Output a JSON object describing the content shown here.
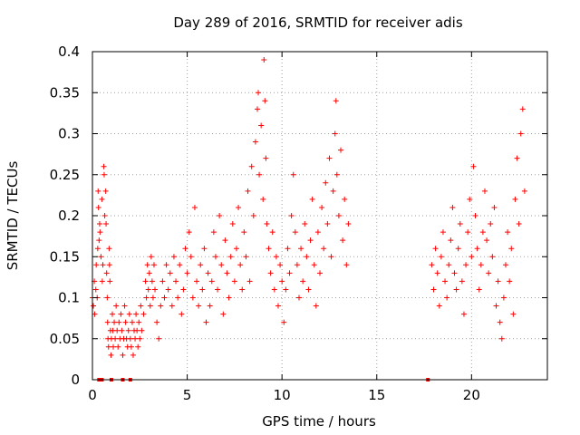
{
  "chart_data": {
    "type": "scatter",
    "title": "Day 289 of 2016, SRMTID for receiver adis",
    "xlabel": "GPS time / hours",
    "ylabel": "SRMTID / TECUs",
    "xlim": [
      0,
      24
    ],
    "ylim": [
      0,
      0.4
    ],
    "x_ticks": [
      0,
      5,
      10,
      15,
      20
    ],
    "y_ticks": [
      0,
      0.05,
      0.1,
      0.15,
      0.2,
      0.25,
      0.3,
      0.35,
      0.4
    ],
    "x_tick_labels": [
      "0",
      "5",
      "10",
      "15",
      "20"
    ],
    "y_tick_labels": [
      "0",
      "0.05",
      "0.1",
      "0.15",
      "0.2",
      "0.25",
      "0.3",
      "0.35",
      "0.4"
    ],
    "grid": true,
    "marker": "plus",
    "color": "#ff0000",
    "series": [
      {
        "name": "SRMTID",
        "points": [
          [
            0.0,
            0.1
          ],
          [
            0.05,
            0.09
          ],
          [
            0.1,
            0.12
          ],
          [
            0.12,
            0.08
          ],
          [
            0.18,
            0.11
          ],
          [
            0.2,
            0.14
          ],
          [
            0.25,
            0.1
          ],
          [
            0.28,
            0.16
          ],
          [
            0.3,
            0.23
          ],
          [
            0.32,
            0.21
          ],
          [
            0.35,
            0.17
          ],
          [
            0.38,
            0.19
          ],
          [
            0.4,
            0.18
          ],
          [
            0.45,
            0.15
          ],
          [
            0.5,
            0.22
          ],
          [
            0.52,
            0.12
          ],
          [
            0.55,
            0.14
          ],
          [
            0.6,
            0.26
          ],
          [
            0.62,
            0.25
          ],
          [
            0.65,
            0.2
          ],
          [
            0.7,
            0.23
          ],
          [
            0.72,
            0.19
          ],
          [
            0.75,
            0.13
          ],
          [
            0.78,
            0.1
          ],
          [
            0.8,
            0.07
          ],
          [
            0.82,
            0.05
          ],
          [
            0.85,
            0.04
          ],
          [
            0.88,
            0.16
          ],
          [
            0.9,
            0.14
          ],
          [
            0.92,
            0.12
          ],
          [
            0.95,
            0.06
          ],
          [
            0.98,
            0.03
          ],
          [
            1.0,
            0.05
          ],
          [
            1.05,
            0.08
          ],
          [
            1.08,
            0.06
          ],
          [
            1.1,
            0.04
          ],
          [
            1.15,
            0.07
          ],
          [
            1.2,
            0.05
          ],
          [
            1.25,
            0.09
          ],
          [
            1.3,
            0.06
          ],
          [
            1.35,
            0.04
          ],
          [
            1.4,
            0.07
          ],
          [
            1.45,
            0.05
          ],
          [
            1.5,
            0.08
          ],
          [
            1.55,
            0.06
          ],
          [
            1.6,
            0.03
          ],
          [
            1.65,
            0.05
          ],
          [
            1.7,
            0.09
          ],
          [
            1.75,
            0.07
          ],
          [
            1.8,
            0.05
          ],
          [
            1.85,
            0.04
          ],
          [
            1.9,
            0.06
          ],
          [
            1.95,
            0.08
          ],
          [
            2.0,
            0.05
          ],
          [
            2.05,
            0.04
          ],
          [
            2.1,
            0.07
          ],
          [
            2.15,
            0.03
          ],
          [
            2.2,
            0.06
          ],
          [
            2.25,
            0.05
          ],
          [
            2.3,
            0.08
          ],
          [
            2.35,
            0.06
          ],
          [
            2.4,
            0.04
          ],
          [
            2.45,
            0.07
          ],
          [
            2.5,
            0.05
          ],
          [
            2.55,
            0.09
          ],
          [
            2.6,
            0.06
          ],
          [
            2.7,
            0.08
          ],
          [
            2.8,
            0.12
          ],
          [
            2.85,
            0.1
          ],
          [
            2.9,
            0.14
          ],
          [
            2.95,
            0.11
          ],
          [
            3.0,
            0.13
          ],
          [
            3.05,
            0.09
          ],
          [
            3.1,
            0.15
          ],
          [
            3.15,
            0.12
          ],
          [
            3.2,
            0.1
          ],
          [
            3.25,
            0.14
          ],
          [
            3.3,
            0.11
          ],
          [
            3.4,
            0.07
          ],
          [
            3.5,
            0.05
          ],
          [
            3.6,
            0.09
          ],
          [
            3.7,
            0.12
          ],
          [
            3.8,
            0.1
          ],
          [
            3.9,
            0.14
          ],
          [
            4.0,
            0.11
          ],
          [
            4.1,
            0.13
          ],
          [
            4.2,
            0.09
          ],
          [
            4.3,
            0.15
          ],
          [
            4.4,
            0.12
          ],
          [
            4.5,
            0.1
          ],
          [
            4.6,
            0.14
          ],
          [
            4.7,
            0.08
          ],
          [
            4.8,
            0.11
          ],
          [
            4.9,
            0.16
          ],
          [
            5.0,
            0.13
          ],
          [
            5.1,
            0.18
          ],
          [
            5.2,
            0.15
          ],
          [
            5.3,
            0.1
          ],
          [
            5.4,
            0.21
          ],
          [
            5.5,
            0.12
          ],
          [
            5.6,
            0.09
          ],
          [
            5.7,
            0.14
          ],
          [
            5.8,
            0.11
          ],
          [
            5.9,
            0.16
          ],
          [
            6.0,
            0.07
          ],
          [
            6.1,
            0.13
          ],
          [
            6.2,
            0.09
          ],
          [
            6.3,
            0.12
          ],
          [
            6.4,
            0.18
          ],
          [
            6.5,
            0.15
          ],
          [
            6.6,
            0.11
          ],
          [
            6.7,
            0.2
          ],
          [
            6.8,
            0.14
          ],
          [
            6.9,
            0.08
          ],
          [
            7.0,
            0.17
          ],
          [
            7.1,
            0.13
          ],
          [
            7.2,
            0.1
          ],
          [
            7.3,
            0.15
          ],
          [
            7.4,
            0.19
          ],
          [
            7.5,
            0.12
          ],
          [
            7.6,
            0.16
          ],
          [
            7.7,
            0.21
          ],
          [
            7.8,
            0.14
          ],
          [
            7.9,
            0.11
          ],
          [
            8.0,
            0.18
          ],
          [
            8.1,
            0.15
          ],
          [
            8.2,
            0.23
          ],
          [
            8.3,
            0.12
          ],
          [
            8.4,
            0.26
          ],
          [
            8.5,
            0.2
          ],
          [
            8.6,
            0.29
          ],
          [
            8.7,
            0.33
          ],
          [
            8.75,
            0.35
          ],
          [
            8.8,
            0.25
          ],
          [
            8.9,
            0.31
          ],
          [
            9.0,
            0.22
          ],
          [
            9.05,
            0.39
          ],
          [
            9.1,
            0.34
          ],
          [
            9.15,
            0.27
          ],
          [
            9.2,
            0.19
          ],
          [
            9.3,
            0.16
          ],
          [
            9.4,
            0.13
          ],
          [
            9.5,
            0.18
          ],
          [
            9.6,
            0.11
          ],
          [
            9.7,
            0.15
          ],
          [
            9.8,
            0.09
          ],
          [
            9.9,
            0.14
          ],
          [
            10.0,
            0.12
          ],
          [
            10.1,
            0.07
          ],
          [
            10.2,
            0.11
          ],
          [
            10.3,
            0.16
          ],
          [
            10.4,
            0.13
          ],
          [
            10.5,
            0.2
          ],
          [
            10.6,
            0.25
          ],
          [
            10.7,
            0.18
          ],
          [
            10.8,
            0.14
          ],
          [
            10.9,
            0.1
          ],
          [
            11.0,
            0.16
          ],
          [
            11.1,
            0.12
          ],
          [
            11.2,
            0.19
          ],
          [
            11.3,
            0.15
          ],
          [
            11.4,
            0.11
          ],
          [
            11.5,
            0.17
          ],
          [
            11.6,
            0.22
          ],
          [
            11.7,
            0.14
          ],
          [
            11.8,
            0.09
          ],
          [
            11.9,
            0.18
          ],
          [
            12.0,
            0.13
          ],
          [
            12.1,
            0.21
          ],
          [
            12.2,
            0.16
          ],
          [
            12.3,
            0.24
          ],
          [
            12.4,
            0.19
          ],
          [
            12.5,
            0.27
          ],
          [
            12.6,
            0.15
          ],
          [
            12.7,
            0.23
          ],
          [
            12.8,
            0.3
          ],
          [
            12.85,
            0.34
          ],
          [
            12.9,
            0.25
          ],
          [
            13.0,
            0.2
          ],
          [
            13.1,
            0.28
          ],
          [
            13.2,
            0.17
          ],
          [
            13.3,
            0.22
          ],
          [
            13.4,
            0.14
          ],
          [
            13.5,
            0.19
          ],
          [
            17.7,
            0.0
          ],
          [
            0.35,
            0.0
          ],
          [
            0.5,
            0.0
          ],
          [
            1.0,
            0.0
          ],
          [
            1.6,
            0.0
          ],
          [
            2.0,
            0.0
          ],
          [
            17.9,
            0.14
          ],
          [
            18.0,
            0.11
          ],
          [
            18.1,
            0.16
          ],
          [
            18.2,
            0.13
          ],
          [
            18.3,
            0.09
          ],
          [
            18.4,
            0.15
          ],
          [
            18.5,
            0.18
          ],
          [
            18.6,
            0.12
          ],
          [
            18.7,
            0.1
          ],
          [
            18.8,
            0.14
          ],
          [
            18.9,
            0.17
          ],
          [
            19.0,
            0.21
          ],
          [
            19.1,
            0.13
          ],
          [
            19.2,
            0.11
          ],
          [
            19.3,
            0.16
          ],
          [
            19.4,
            0.19
          ],
          [
            19.5,
            0.12
          ],
          [
            19.6,
            0.08
          ],
          [
            19.7,
            0.14
          ],
          [
            19.8,
            0.18
          ],
          [
            19.9,
            0.22
          ],
          [
            20.0,
            0.15
          ],
          [
            20.1,
            0.26
          ],
          [
            20.2,
            0.2
          ],
          [
            20.3,
            0.16
          ],
          [
            20.4,
            0.11
          ],
          [
            20.5,
            0.14
          ],
          [
            20.6,
            0.18
          ],
          [
            20.7,
            0.23
          ],
          [
            20.8,
            0.17
          ],
          [
            20.9,
            0.13
          ],
          [
            21.0,
            0.19
          ],
          [
            21.1,
            0.15
          ],
          [
            21.2,
            0.21
          ],
          [
            21.3,
            0.09
          ],
          [
            21.4,
            0.12
          ],
          [
            21.5,
            0.07
          ],
          [
            21.6,
            0.05
          ],
          [
            21.7,
            0.1
          ],
          [
            21.8,
            0.14
          ],
          [
            21.9,
            0.18
          ],
          [
            22.0,
            0.12
          ],
          [
            22.1,
            0.16
          ],
          [
            22.2,
            0.08
          ],
          [
            22.3,
            0.22
          ],
          [
            22.4,
            0.27
          ],
          [
            22.5,
            0.19
          ],
          [
            22.6,
            0.3
          ],
          [
            22.7,
            0.33
          ],
          [
            22.8,
            0.23
          ]
        ]
      }
    ]
  }
}
